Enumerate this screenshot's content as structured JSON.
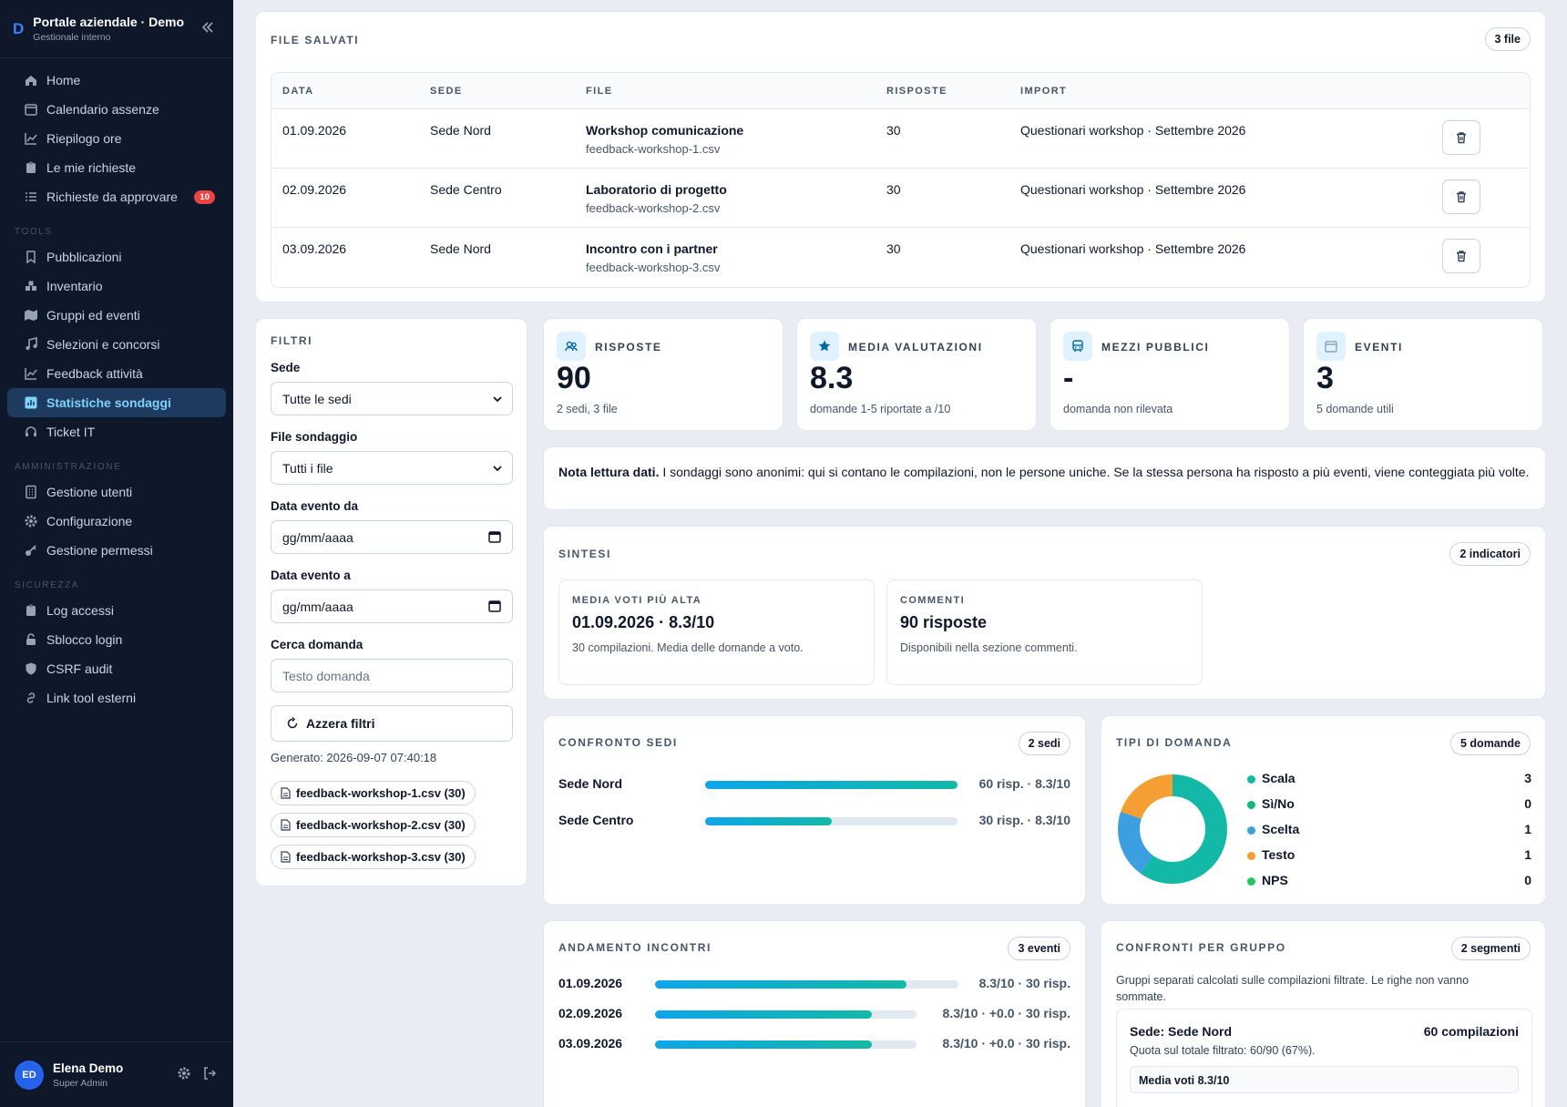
{
  "app": {
    "logo": "D",
    "title": "Portale aziendale · Demo",
    "subtitle": "Gestionale interno"
  },
  "nav": {
    "main": [
      {
        "label": "Home",
        "icon": "home-icon"
      },
      {
        "label": "Calendario assenze",
        "icon": "calendar-icon"
      },
      {
        "label": "Riepilogo ore",
        "icon": "chart-line-icon"
      },
      {
        "label": "Le mie richieste",
        "icon": "clipboard-icon"
      },
      {
        "label": "Richieste da approvare",
        "icon": "list-icon",
        "badge": "10"
      }
    ],
    "tools_label": "TOOLS",
    "tools": [
      {
        "label": "Pubblicazioni",
        "icon": "bookmark-icon"
      },
      {
        "label": "Inventario",
        "icon": "boxes-icon"
      },
      {
        "label": "Gruppi ed eventi",
        "icon": "map-icon"
      },
      {
        "label": "Selezioni e concorsi",
        "icon": "music-icon"
      },
      {
        "label": "Feedback attività",
        "icon": "chart-line-icon"
      },
      {
        "label": "Statistiche sondaggi",
        "icon": "bar-chart-icon",
        "active": true
      },
      {
        "label": "Ticket IT",
        "icon": "headset-icon"
      }
    ],
    "admin_label": "AMMINISTRAZIONE",
    "admin": [
      {
        "label": "Gestione utenti",
        "icon": "building-icon"
      },
      {
        "label": "Configurazione",
        "icon": "gear-icon"
      },
      {
        "label": "Gestione permessi",
        "icon": "key-icon"
      }
    ],
    "security_label": "SICUREZZA",
    "security": [
      {
        "label": "Log accessi",
        "icon": "clipboard-icon"
      },
      {
        "label": "Sblocco login",
        "icon": "lock-icon"
      },
      {
        "label": "CSRF audit",
        "icon": "shield-icon"
      },
      {
        "label": "Link tool esterni",
        "icon": "link-icon"
      }
    ]
  },
  "user": {
    "initials": "ED",
    "name": "Elena Demo",
    "role": "Super Admin"
  },
  "files": {
    "title": "FILE SALVATI",
    "count": "3 file",
    "columns": {
      "date": "DATA",
      "site": "SEDE",
      "file": "FILE",
      "responses": "RISPOSTE",
      "import": "IMPORT"
    },
    "rows": [
      {
        "date": "01.09.2026",
        "site": "Sede Nord",
        "name": "Workshop comunicazione",
        "file": "feedback-workshop-1.csv",
        "responses": "30",
        "import": "Questionari workshop · Settembre 2026"
      },
      {
        "date": "02.09.2026",
        "site": "Sede Centro",
        "name": "Laboratorio di progetto",
        "file": "feedback-workshop-2.csv",
        "responses": "30",
        "import": "Questionari workshop · Settembre 2026"
      },
      {
        "date": "03.09.2026",
        "site": "Sede Nord",
        "name": "Incontro con i partner",
        "file": "feedback-workshop-3.csv",
        "responses": "30",
        "import": "Questionari workshop · Settembre 2026"
      }
    ]
  },
  "filters": {
    "title": "FILTRI",
    "site_label": "Sede",
    "site_value": "Tutte le sedi",
    "file_label": "File sondaggio",
    "file_value": "Tutti i file",
    "from_label": "Data evento da",
    "from_value": "gg/mm/aaaa",
    "to_label": "Data evento a",
    "to_value": "gg/mm/aaaa",
    "search_label": "Cerca domanda",
    "search_placeholder": "Testo domanda",
    "reset_label": "Azzera filtri",
    "generated": "Generato: 2026-09-07 07:40:18",
    "chips": [
      "feedback-workshop-1.csv (30)",
      "feedback-workshop-2.csv (30)",
      "feedback-workshop-3.csv (30)"
    ]
  },
  "stats": [
    {
      "label": "RISPOSTE",
      "value": "90",
      "sub": "2 sedi, 3 file",
      "icon": "users-icon"
    },
    {
      "label": "MEDIA VALUTAZIONI",
      "value": "8.3",
      "sub": "domande 1-5 riportate a /10",
      "icon": "star-icon"
    },
    {
      "label": "MEZZI PUBBLICI",
      "value": "-",
      "sub": "domanda non rilevata",
      "icon": "bus-icon"
    },
    {
      "label": "EVENTI",
      "value": "3",
      "sub": "5 domande utili",
      "icon": "calendar-icon"
    }
  ],
  "note": {
    "bold": "Nota lettura dati.",
    "text": " I sondaggi sono anonimi: qui si contano le compilazioni, non le persone uniche. Se la stessa persona ha risposto a più eventi, viene conteggiata più volte."
  },
  "summary": {
    "title": "SINTESI",
    "count": "2 indicatori",
    "boxes": [
      {
        "title": "MEDIA VOTI PIÙ ALTA",
        "value": "01.09.2026 · 8.3/10",
        "desc": "30 compilazioni. Media delle domande a voto."
      },
      {
        "title": "COMMENTI",
        "value": "90 risposte",
        "desc": "Disponibili nella sezione commenti."
      }
    ]
  },
  "sites": {
    "title": "CONFRONTO SEDI",
    "count": "2 sedi",
    "rows": [
      {
        "label": "Sede Nord",
        "fraction": 1.0,
        "value": "60 risp. · 8.3/10"
      },
      {
        "label": "Sede Centro",
        "fraction": 0.5,
        "value": "30 risp. · 8.3/10"
      }
    ]
  },
  "types": {
    "title": "TIPI DI DOMANDA",
    "count": "5 domande",
    "items": [
      {
        "label": "Scala",
        "count": "3",
        "value": 3,
        "color": "#14b8a6"
      },
      {
        "label": "Sì/No",
        "count": "0",
        "value": 0,
        "color": "#10b981"
      },
      {
        "label": "Scelta",
        "count": "1",
        "value": 1,
        "color": "#3b9fe0"
      },
      {
        "label": "Testo",
        "count": "1",
        "value": 1,
        "color": "#f59e33"
      },
      {
        "label": "NPS",
        "count": "0",
        "value": 0,
        "color": "#22c55e"
      }
    ]
  },
  "trend": {
    "title": "ANDAMENTO INCONTRI",
    "count": "3 eventi",
    "rows": [
      {
        "label": "01.09.2026",
        "fraction": 0.83,
        "value": "8.3/10 · 30 risp."
      },
      {
        "label": "02.09.2026",
        "fraction": 0.83,
        "value": "8.3/10 · +0.0 · 30 risp."
      },
      {
        "label": "03.09.2026",
        "fraction": 0.83,
        "value": "8.3/10 · +0.0 · 30 risp."
      }
    ]
  },
  "groups": {
    "title": "CONFRONTI PER GRUPPO",
    "count": "2 segmenti",
    "desc": "Gruppi separati calcolati sulle compilazioni filtrate. Le righe non vanno sommate.",
    "segment": {
      "name": "Sede: Sede Nord",
      "total": "60 compilazioni",
      "quota": "Quota sul totale filtrato: 60/90 (67%).",
      "metric": "Media voti 8.3/10"
    }
  }
}
